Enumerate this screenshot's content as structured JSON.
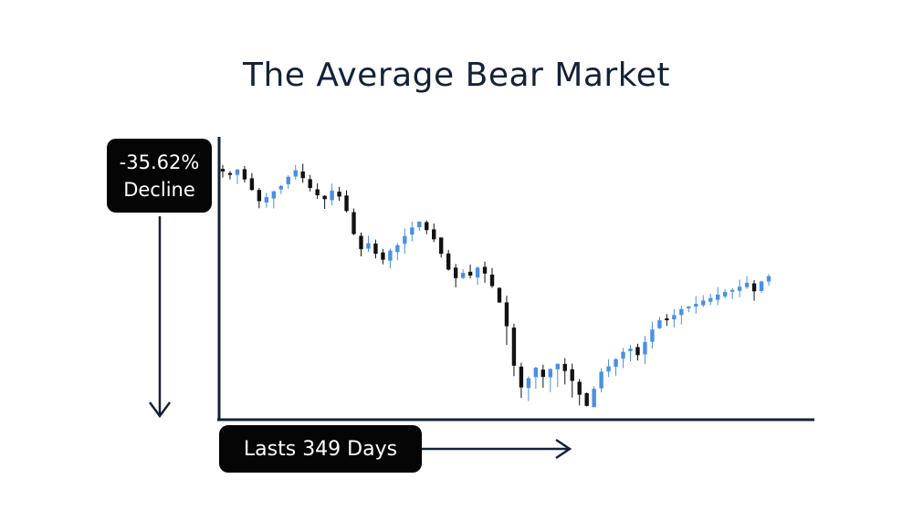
{
  "title": "The Average Bear Market",
  "decline_label": {
    "value": "-35.62%",
    "text": "Decline"
  },
  "duration_label": "Lasts 349 Days",
  "colors": {
    "axis": "#13223a",
    "up": "#4a90e2",
    "down": "#111111",
    "label_bg": "#050505"
  },
  "chart_data": {
    "type": "candlestick",
    "title": "The Average Bear Market",
    "decline_percent": -35.62,
    "duration_days": 349,
    "axes": {
      "ticks_shown": false,
      "grid": false
    },
    "y_range_percent_from_peak": [
      -35.62,
      0
    ],
    "closes_percent_from_start": [
      0.0,
      -0.5,
      0.3,
      -1.2,
      -2.8,
      -4.5,
      -3.9,
      -3.0,
      -2.2,
      -0.8,
      0.2,
      -1.0,
      -2.5,
      -3.6,
      -4.2,
      -2.9,
      -3.8,
      -6.0,
      -9.5,
      -11.8,
      -10.9,
      -12.5,
      -13.4,
      -12.0,
      -11.2,
      -9.8,
      -8.5,
      -7.6,
      -8.9,
      -10.3,
      -12.5,
      -14.9,
      -16.2,
      -15.4,
      -15.8,
      -14.6,
      -15.5,
      -17.4,
      -19.9,
      -23.5,
      -29.5,
      -32.8,
      -31.4,
      -29.8,
      -31.2,
      -30.0,
      -29.2,
      -30.3,
      -31.8,
      -33.9,
      -35.6,
      -33.0,
      -30.4,
      -29.6,
      -28.5,
      -27.4,
      -26.9,
      -27.9,
      -25.9,
      -24.0,
      -22.6,
      -22.4,
      -21.8,
      -20.9,
      -20.5,
      -20.1,
      -19.6,
      -19.2,
      -18.7,
      -18.3,
      -18.0,
      -17.5,
      -16.9,
      -18.2,
      -16.7,
      -15.9
    ]
  }
}
